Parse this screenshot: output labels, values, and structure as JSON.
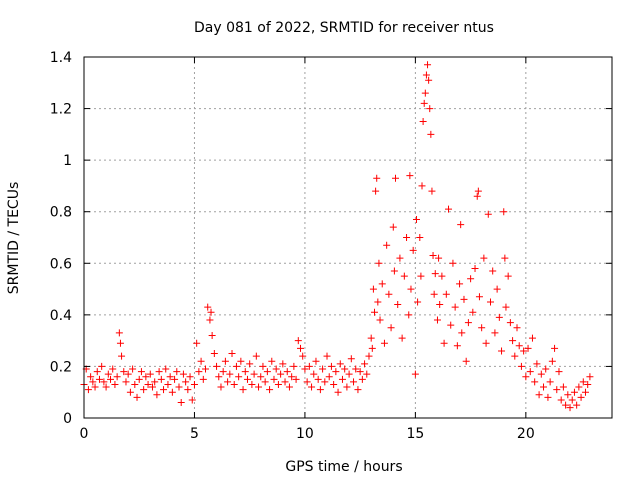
{
  "chart_data": {
    "type": "scatter",
    "title": "Day 081 of 2022, SRMTID for receiver ntus",
    "xlabel": "GPS time / hours",
    "ylabel": "SRMTID / TECUs",
    "xlim": [
      0,
      23.9
    ],
    "ylim": [
      0,
      1.4
    ],
    "xticks": [
      0,
      5,
      10,
      15,
      20
    ],
    "xtick_labels": [
      "0",
      "5",
      "10",
      "15",
      "20"
    ],
    "yticks": [
      0,
      0.2,
      0.4,
      0.6,
      0.8,
      1,
      1.2,
      1.4
    ],
    "ytick_labels": [
      "0",
      "0.2",
      "0.4",
      "0.6",
      "0.8",
      "1",
      "1.2",
      "1.4"
    ],
    "grid": true,
    "marker": "+",
    "color": "#ff0000",
    "series": [
      {
        "name": "ntus",
        "points": [
          [
            0.0,
            0.13
          ],
          [
            0.1,
            0.19
          ],
          [
            0.2,
            0.11
          ],
          [
            0.3,
            0.16
          ],
          [
            0.4,
            0.14
          ],
          [
            0.5,
            0.12
          ],
          [
            0.6,
            0.18
          ],
          [
            0.7,
            0.15
          ],
          [
            0.8,
            0.2
          ],
          [
            0.9,
            0.14
          ],
          [
            1.0,
            0.12
          ],
          [
            1.1,
            0.17
          ],
          [
            1.2,
            0.15
          ],
          [
            1.3,
            0.19
          ],
          [
            1.4,
            0.13
          ],
          [
            1.5,
            0.16
          ],
          [
            1.6,
            0.33
          ],
          [
            1.65,
            0.29
          ],
          [
            1.7,
            0.24
          ],
          [
            1.8,
            0.18
          ],
          [
            1.9,
            0.14
          ],
          [
            2.0,
            0.17
          ],
          [
            2.1,
            0.1
          ],
          [
            2.2,
            0.19
          ],
          [
            2.3,
            0.13
          ],
          [
            2.4,
            0.08
          ],
          [
            2.5,
            0.15
          ],
          [
            2.6,
            0.18
          ],
          [
            2.7,
            0.11
          ],
          [
            2.8,
            0.16
          ],
          [
            2.9,
            0.13
          ],
          [
            3.0,
            0.17
          ],
          [
            3.1,
            0.12
          ],
          [
            3.2,
            0.14
          ],
          [
            3.3,
            0.09
          ],
          [
            3.4,
            0.18
          ],
          [
            3.5,
            0.15
          ],
          [
            3.6,
            0.11
          ],
          [
            3.7,
            0.19
          ],
          [
            3.8,
            0.13
          ],
          [
            3.9,
            0.16
          ],
          [
            4.0,
            0.1
          ],
          [
            4.1,
            0.15
          ],
          [
            4.2,
            0.18
          ],
          [
            4.3,
            0.12
          ],
          [
            4.4,
            0.06
          ],
          [
            4.5,
            0.17
          ],
          [
            4.6,
            0.14
          ],
          [
            4.7,
            0.11
          ],
          [
            4.8,
            0.16
          ],
          [
            4.9,
            0.07
          ],
          [
            5.0,
            0.13
          ],
          [
            5.1,
            0.29
          ],
          [
            5.2,
            0.18
          ],
          [
            5.3,
            0.22
          ],
          [
            5.4,
            0.15
          ],
          [
            5.5,
            0.19
          ],
          [
            5.6,
            0.43
          ],
          [
            5.7,
            0.38
          ],
          [
            5.75,
            0.41
          ],
          [
            5.8,
            0.32
          ],
          [
            5.9,
            0.25
          ],
          [
            6.0,
            0.2
          ],
          [
            6.1,
            0.16
          ],
          [
            6.2,
            0.12
          ],
          [
            6.3,
            0.18
          ],
          [
            6.4,
            0.22
          ],
          [
            6.5,
            0.14
          ],
          [
            6.6,
            0.17
          ],
          [
            6.7,
            0.25
          ],
          [
            6.8,
            0.13
          ],
          [
            6.9,
            0.2
          ],
          [
            7.0,
            0.16
          ],
          [
            7.1,
            0.22
          ],
          [
            7.2,
            0.11
          ],
          [
            7.3,
            0.18
          ],
          [
            7.4,
            0.15
          ],
          [
            7.5,
            0.21
          ],
          [
            7.6,
            0.13
          ],
          [
            7.7,
            0.17
          ],
          [
            7.8,
            0.24
          ],
          [
            7.9,
            0.12
          ],
          [
            8.0,
            0.16
          ],
          [
            8.1,
            0.2
          ],
          [
            8.2,
            0.14
          ],
          [
            8.3,
            0.18
          ],
          [
            8.4,
            0.11
          ],
          [
            8.5,
            0.22
          ],
          [
            8.6,
            0.15
          ],
          [
            8.7,
            0.19
          ],
          [
            8.8,
            0.13
          ],
          [
            8.9,
            0.17
          ],
          [
            9.0,
            0.21
          ],
          [
            9.1,
            0.14
          ],
          [
            9.2,
            0.18
          ],
          [
            9.3,
            0.12
          ],
          [
            9.4,
            0.16
          ],
          [
            9.5,
            0.2
          ],
          [
            9.6,
            0.15
          ],
          [
            9.7,
            0.3
          ],
          [
            9.8,
            0.27
          ],
          [
            9.9,
            0.24
          ],
          [
            10.0,
            0.19
          ],
          [
            10.1,
            0.14
          ],
          [
            10.2,
            0.2
          ],
          [
            10.3,
            0.12
          ],
          [
            10.4,
            0.17
          ],
          [
            10.5,
            0.22
          ],
          [
            10.6,
            0.15
          ],
          [
            10.7,
            0.11
          ],
          [
            10.8,
            0.19
          ],
          [
            10.9,
            0.14
          ],
          [
            11.0,
            0.24
          ],
          [
            11.1,
            0.16
          ],
          [
            11.2,
            0.2
          ],
          [
            11.3,
            0.13
          ],
          [
            11.4,
            0.18
          ],
          [
            11.5,
            0.1
          ],
          [
            11.6,
            0.21
          ],
          [
            11.7,
            0.15
          ],
          [
            11.8,
            0.19
          ],
          [
            11.9,
            0.12
          ],
          [
            12.0,
            0.17
          ],
          [
            12.1,
            0.23
          ],
          [
            12.2,
            0.14
          ],
          [
            12.3,
            0.19
          ],
          [
            12.4,
            0.11
          ],
          [
            12.5,
            0.18
          ],
          [
            12.6,
            0.15
          ],
          [
            12.7,
            0.21
          ],
          [
            12.8,
            0.17
          ],
          [
            12.9,
            0.24
          ],
          [
            13.0,
            0.31
          ],
          [
            13.05,
            0.27
          ],
          [
            13.1,
            0.5
          ],
          [
            13.15,
            0.41
          ],
          [
            13.2,
            0.88
          ],
          [
            13.25,
            0.93
          ],
          [
            13.3,
            0.45
          ],
          [
            13.35,
            0.6
          ],
          [
            13.4,
            0.38
          ],
          [
            13.5,
            0.52
          ],
          [
            13.6,
            0.29
          ],
          [
            13.7,
            0.67
          ],
          [
            13.8,
            0.48
          ],
          [
            13.9,
            0.35
          ],
          [
            14.0,
            0.74
          ],
          [
            14.05,
            0.57
          ],
          [
            14.1,
            0.93
          ],
          [
            14.2,
            0.44
          ],
          [
            14.3,
            0.62
          ],
          [
            14.4,
            0.31
          ],
          [
            14.5,
            0.55
          ],
          [
            14.6,
            0.7
          ],
          [
            14.7,
            0.4
          ],
          [
            14.75,
            0.94
          ],
          [
            14.8,
            0.5
          ],
          [
            14.9,
            0.65
          ],
          [
            15.0,
            0.17
          ],
          [
            15.05,
            0.77
          ],
          [
            15.1,
            0.45
          ],
          [
            15.2,
            0.7
          ],
          [
            15.25,
            0.55
          ],
          [
            15.3,
            0.9
          ],
          [
            15.35,
            1.15
          ],
          [
            15.4,
            1.22
          ],
          [
            15.45,
            1.26
          ],
          [
            15.5,
            1.33
          ],
          [
            15.55,
            1.37
          ],
          [
            15.6,
            1.31
          ],
          [
            15.65,
            1.2
          ],
          [
            15.7,
            1.1
          ],
          [
            15.75,
            0.88
          ],
          [
            15.8,
            0.63
          ],
          [
            15.85,
            0.48
          ],
          [
            15.9,
            0.56
          ],
          [
            16.0,
            0.38
          ],
          [
            16.05,
            0.62
          ],
          [
            16.1,
            0.44
          ],
          [
            16.2,
            0.55
          ],
          [
            16.3,
            0.29
          ],
          [
            16.4,
            0.48
          ],
          [
            16.5,
            0.81
          ],
          [
            16.6,
            0.36
          ],
          [
            16.7,
            0.6
          ],
          [
            16.8,
            0.43
          ],
          [
            16.9,
            0.28
          ],
          [
            17.0,
            0.52
          ],
          [
            17.05,
            0.75
          ],
          [
            17.1,
            0.33
          ],
          [
            17.2,
            0.46
          ],
          [
            17.3,
            0.22
          ],
          [
            17.4,
            0.37
          ],
          [
            17.5,
            0.54
          ],
          [
            17.6,
            0.41
          ],
          [
            17.7,
            0.58
          ],
          [
            17.8,
            0.86
          ],
          [
            17.85,
            0.88
          ],
          [
            17.9,
            0.47
          ],
          [
            18.0,
            0.35
          ],
          [
            18.1,
            0.62
          ],
          [
            18.2,
            0.29
          ],
          [
            18.3,
            0.79
          ],
          [
            18.4,
            0.45
          ],
          [
            18.5,
            0.57
          ],
          [
            18.6,
            0.33
          ],
          [
            18.7,
            0.5
          ],
          [
            18.8,
            0.39
          ],
          [
            18.9,
            0.26
          ],
          [
            19.0,
            0.8
          ],
          [
            19.05,
            0.62
          ],
          [
            19.1,
            0.43
          ],
          [
            19.2,
            0.55
          ],
          [
            19.3,
            0.37
          ],
          [
            19.4,
            0.3
          ],
          [
            19.5,
            0.24
          ],
          [
            19.6,
            0.35
          ],
          [
            19.7,
            0.28
          ],
          [
            19.8,
            0.2
          ],
          [
            19.9,
            0.26
          ],
          [
            20.0,
            0.16
          ],
          [
            20.1,
            0.27
          ],
          [
            20.2,
            0.18
          ],
          [
            20.3,
            0.31
          ],
          [
            20.4,
            0.14
          ],
          [
            20.5,
            0.21
          ],
          [
            20.6,
            0.09
          ],
          [
            20.7,
            0.17
          ],
          [
            20.8,
            0.12
          ],
          [
            20.9,
            0.19
          ],
          [
            21.0,
            0.08
          ],
          [
            21.1,
            0.14
          ],
          [
            21.2,
            0.22
          ],
          [
            21.3,
            0.27
          ],
          [
            21.4,
            0.11
          ],
          [
            21.5,
            0.18
          ],
          [
            21.6,
            0.07
          ],
          [
            21.7,
            0.12
          ],
          [
            21.8,
            0.05
          ],
          [
            21.9,
            0.09
          ],
          [
            22.0,
            0.04
          ],
          [
            22.1,
            0.07
          ],
          [
            22.2,
            0.1
          ],
          [
            22.3,
            0.05
          ],
          [
            22.4,
            0.12
          ],
          [
            22.5,
            0.08
          ],
          [
            22.6,
            0.14
          ],
          [
            22.7,
            0.1
          ],
          [
            22.8,
            0.13
          ],
          [
            22.9,
            0.16
          ]
        ]
      }
    ]
  }
}
